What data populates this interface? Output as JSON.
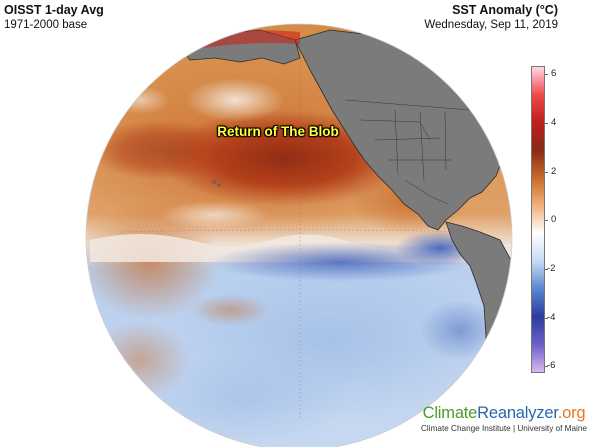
{
  "header": {
    "title": "OISST 1-day Avg",
    "subtitle": "1971-2000 base",
    "variable": "SST Anomaly (°C)",
    "date": "Wednesday, Sep 11, 2019"
  },
  "map": {
    "annotation": "Return of The Blob",
    "colors": {
      "land": "#7b7b7b",
      "coast": "#2a2a2a",
      "warm": "#d98a3c",
      "hot": "#a82a14",
      "neutral": "#f5f3f2",
      "cool": "#a9c6ea",
      "cold": "#2f4fa8"
    }
  },
  "colorbar": {
    "ticks": [
      "6",
      "4",
      "2",
      "0",
      "-2",
      "-4",
      "-6"
    ],
    "stops": [
      "#ffd8e6",
      "#f04a4a",
      "#c01d1d",
      "#8a2a1a",
      "#c86a2a",
      "#f0b27a",
      "#ffffff",
      "#c7dbf2",
      "#5b86d1",
      "#2c3c9e",
      "#6b5fc9",
      "#d8b8ee"
    ]
  },
  "brand": {
    "name_part1": "Climate",
    "name_part2": "Reanalyzer",
    "name_part3": ".org",
    "affiliation": "Climate Change Institute | University of Maine"
  }
}
